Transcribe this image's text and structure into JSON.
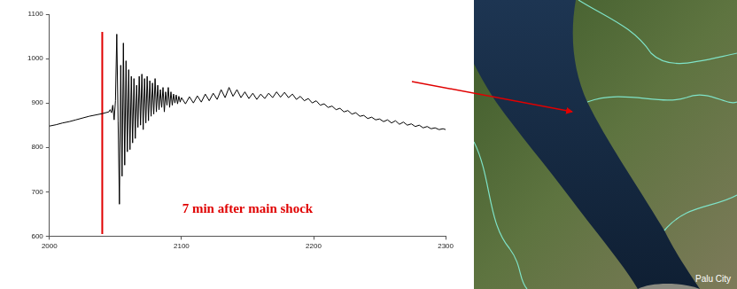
{
  "chart_data": {
    "type": "line",
    "x": [
      2000,
      2005,
      2010,
      2015,
      2020,
      2025,
      2030,
      2035,
      2040,
      2045,
      2046,
      2047,
      2048,
      2049,
      2050,
      2051,
      2052,
      2053,
      2054,
      2055,
      2056,
      2057,
      2058,
      2059,
      2060,
      2061,
      2062,
      2063,
      2064,
      2065,
      2066,
      2067,
      2068,
      2069,
      2070,
      2071,
      2072,
      2073,
      2074,
      2075,
      2076,
      2077,
      2078,
      2079,
      2080,
      2081,
      2082,
      2083,
      2084,
      2085,
      2086,
      2087,
      2088,
      2089,
      2090,
      2091,
      2092,
      2093,
      2094,
      2095,
      2096,
      2097,
      2098,
      2099,
      2100,
      2103,
      2106,
      2109,
      2112,
      2115,
      2118,
      2121,
      2124,
      2127,
      2130,
      2133,
      2136,
      2139,
      2142,
      2145,
      2148,
      2151,
      2154,
      2157,
      2160,
      2163,
      2166,
      2169,
      2172,
      2175,
      2178,
      2181,
      2184,
      2187,
      2190,
      2193,
      2196,
      2199,
      2202,
      2205,
      2208,
      2211,
      2214,
      2217,
      2220,
      2223,
      2226,
      2229,
      2232,
      2235,
      2238,
      2241,
      2244,
      2247,
      2250,
      2253,
      2256,
      2259,
      2262,
      2265,
      2268,
      2271,
      2274,
      2277,
      2280,
      2283,
      2286,
      2289,
      2292,
      2295,
      2298,
      2300
    ],
    "values": [
      848,
      851,
      855,
      858,
      862,
      866,
      870,
      873,
      876,
      880,
      885,
      878,
      895,
      862,
      905,
      1055,
      860,
      672,
      985,
      735,
      1035,
      760,
      995,
      790,
      975,
      795,
      960,
      810,
      955,
      820,
      940,
      845,
      960,
      850,
      965,
      840,
      955,
      855,
      960,
      860,
      950,
      870,
      945,
      875,
      955,
      880,
      940,
      885,
      930,
      890,
      935,
      880,
      925,
      895,
      935,
      890,
      925,
      895,
      920,
      900,
      918,
      898,
      915,
      902,
      912,
      898,
      914,
      900,
      916,
      902,
      920,
      905,
      922,
      908,
      930,
      912,
      935,
      915,
      930,
      912,
      925,
      910,
      922,
      908,
      920,
      910,
      922,
      912,
      925,
      913,
      924,
      912,
      920,
      908,
      915,
      905,
      910,
      900,
      905,
      895,
      898,
      890,
      893,
      885,
      888,
      880,
      883,
      875,
      878,
      870,
      872,
      865,
      868,
      862,
      864,
      858,
      862,
      855,
      860,
      852,
      857,
      850,
      853,
      847,
      850,
      844,
      847,
      842,
      844,
      840,
      842,
      840
    ],
    "color": "#000000",
    "xlim": [
      2000,
      2300
    ],
    "xticks": [
      2000,
      2100,
      2200,
      2300
    ],
    "ylim": [
      600,
      1100
    ],
    "yticks": [
      600,
      700,
      800,
      900,
      1000,
      1100
    ],
    "grid": false,
    "vline": {
      "x": [
        2040,
        2040
      ],
      "values": [
        605,
        1060
      ],
      "color": "#e00000"
    },
    "annotations": [
      {
        "text": "7 min after main shock",
        "color": "#e00000"
      }
    ]
  },
  "map": {
    "label": "Palu City"
  }
}
